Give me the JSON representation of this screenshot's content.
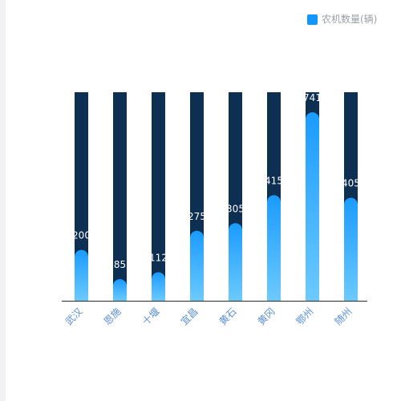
{
  "legend": {
    "label": "农机数量(辆)",
    "color": "#1296ff"
  },
  "colors": {
    "track": "#0c2f52",
    "bar_top": "#1a9bff",
    "bar_bottom": "#6ccaff",
    "axis": "#2b2b2b",
    "value_label": "#ffffff",
    "category_label": "#5b8fd1"
  },
  "chart_data": {
    "type": "bar",
    "categories": [
      "武汉",
      "恩施",
      "十堰",
      "宜昌",
      "黄石",
      "黄冈",
      "鄂州",
      "随州"
    ],
    "series": [
      {
        "name": "农机数量(辆)",
        "values": [
          200,
          85,
          112,
          275,
          305,
          415,
          741,
          405
        ]
      }
    ],
    "ylim": [
      0,
      820
    ],
    "grid": false,
    "legend_position": "top-right"
  }
}
